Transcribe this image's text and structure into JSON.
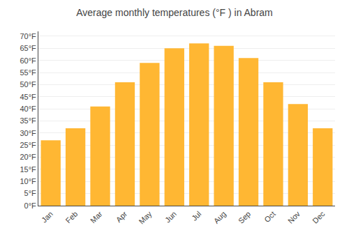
{
  "chart_data": {
    "type": "bar",
    "title": "Average monthly temperatures (°F ) in Abram",
    "categories": [
      "Jan",
      "Feb",
      "Mar",
      "Apr",
      "May",
      "Jun",
      "Jul",
      "Aug",
      "Sep",
      "Oct",
      "Nov",
      "Dec"
    ],
    "values": [
      27,
      32,
      41,
      51,
      59,
      65,
      67,
      66,
      61,
      51,
      42,
      32
    ],
    "color": "#FFB733",
    "ylim": [
      0,
      72
    ],
    "yticks": [
      {
        "value": 0,
        "label": "0°F"
      },
      {
        "value": 5,
        "label": "5°F"
      },
      {
        "value": 10,
        "label": "10°F"
      },
      {
        "value": 15,
        "label": "15°F"
      },
      {
        "value": 20,
        "label": "20°F"
      },
      {
        "value": 25,
        "label": "25°F"
      },
      {
        "value": 30,
        "label": "30°F"
      },
      {
        "value": 35,
        "label": "35°F"
      },
      {
        "value": 40,
        "label": "40°F"
      },
      {
        "value": 45,
        "label": "45°F"
      },
      {
        "value": 50,
        "label": "50°F"
      },
      {
        "value": 55,
        "label": "55°F"
      },
      {
        "value": 60,
        "label": "60°F"
      },
      {
        "value": 65,
        "label": "65°F"
      },
      {
        "value": 70,
        "label": "70°F"
      }
    ],
    "grid": true
  }
}
